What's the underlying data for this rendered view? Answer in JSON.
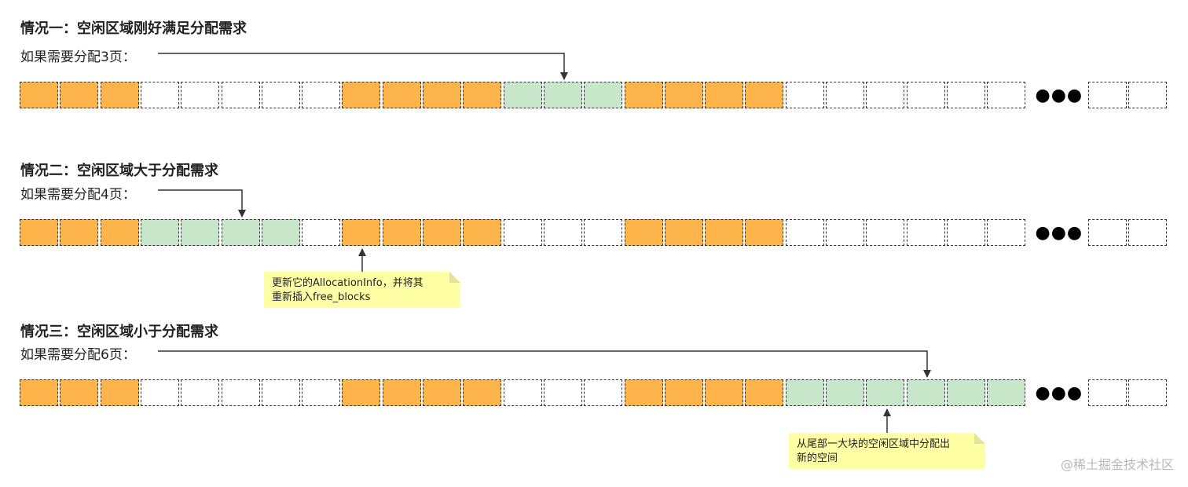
{
  "cases": [
    {
      "title": "情况一：空闲区域刚好满足分配需求",
      "request": "如果需要分配3页：",
      "cells": [
        "used",
        "used",
        "used",
        "free",
        "free",
        "free",
        "free",
        "free",
        "used",
        "used",
        "used",
        "used",
        "alloc",
        "alloc",
        "alloc",
        "used",
        "used",
        "used",
        "used",
        "free",
        "free",
        "free",
        "free",
        "free",
        "free"
      ],
      "tail_cells": [
        "free",
        "free"
      ]
    },
    {
      "title": "情况二：空闲区域大于分配需求",
      "request": "如果需要分配4页：",
      "cells": [
        "used",
        "used",
        "used",
        "alloc",
        "alloc",
        "alloc",
        "alloc",
        "free",
        "used",
        "used",
        "used",
        "used",
        "free",
        "free",
        "free",
        "used",
        "used",
        "used",
        "used",
        "free",
        "free",
        "free",
        "free",
        "free",
        "free"
      ],
      "tail_cells": [
        "free",
        "free"
      ],
      "note": {
        "line1": "更新它的AllocationInfo，并将其",
        "line2": "重新插入free_blocks"
      }
    },
    {
      "title": "情况三：空闲区域小于分配需求",
      "request": "如果需要分配6页：",
      "cells": [
        "used",
        "used",
        "used",
        "free",
        "free",
        "free",
        "free",
        "free",
        "used",
        "used",
        "used",
        "used",
        "free",
        "free",
        "free",
        "used",
        "used",
        "used",
        "used",
        "alloc",
        "alloc",
        "alloc",
        "alloc",
        "alloc",
        "alloc"
      ],
      "tail_cells": [
        "free",
        "free"
      ],
      "note": {
        "line1": "从尾部一大块的空闲区域中分配出",
        "line2": "新的空间"
      }
    }
  ],
  "ellipsis": "●●●",
  "watermark": "@稀土掘金技术社区",
  "colors": {
    "used": "#FDB44B",
    "alloc": "#C8E6C9",
    "free": "#FFFFFF",
    "note": "#FFFFA5"
  }
}
